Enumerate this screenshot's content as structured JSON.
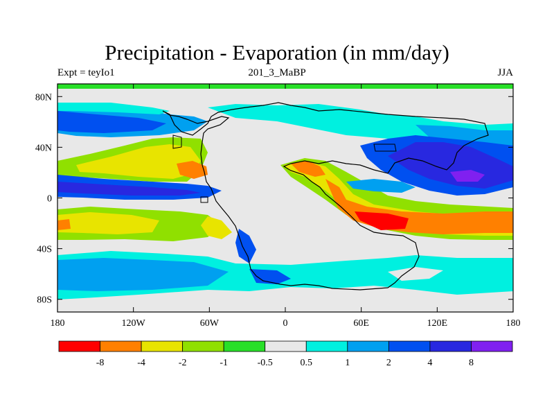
{
  "chart_data": {
    "type": "heatmap",
    "title": "Precipitation - Evaporation (in mm/day)",
    "left_label": "Expt = teyIo1",
    "center_label": "201_3_MaBP",
    "right_label": "JJA",
    "xlim": [
      -180,
      180
    ],
    "ylim": [
      -90,
      90
    ],
    "x_ticks": [
      {
        "value": -180,
        "label": "180"
      },
      {
        "value": -120,
        "label": "120W"
      },
      {
        "value": -60,
        "label": "60W"
      },
      {
        "value": 0,
        "label": "0"
      },
      {
        "value": 60,
        "label": "60E"
      },
      {
        "value": 120,
        "label": "120E"
      },
      {
        "value": 180,
        "label": "180"
      }
    ],
    "y_ticks": [
      {
        "value": 80,
        "label": "80N"
      },
      {
        "value": 40,
        "label": "40N"
      },
      {
        "value": 0,
        "label": "0"
      },
      {
        "value": -40,
        "label": "40S"
      },
      {
        "value": -80,
        "label": "80S"
      }
    ],
    "colorbar": {
      "colors": [
        "#ff0000",
        "#ff8000",
        "#e8e400",
        "#90e000",
        "#28e028",
        "#e8e8e8",
        "#00f0e0",
        "#00a0f0",
        "#0050f0",
        "#2828e0",
        "#8020f0"
      ],
      "labels": [
        "-8",
        "-4",
        "-2",
        "-1",
        "-0.5",
        "0.5",
        "1",
        "2",
        "4",
        "8"
      ]
    }
  }
}
